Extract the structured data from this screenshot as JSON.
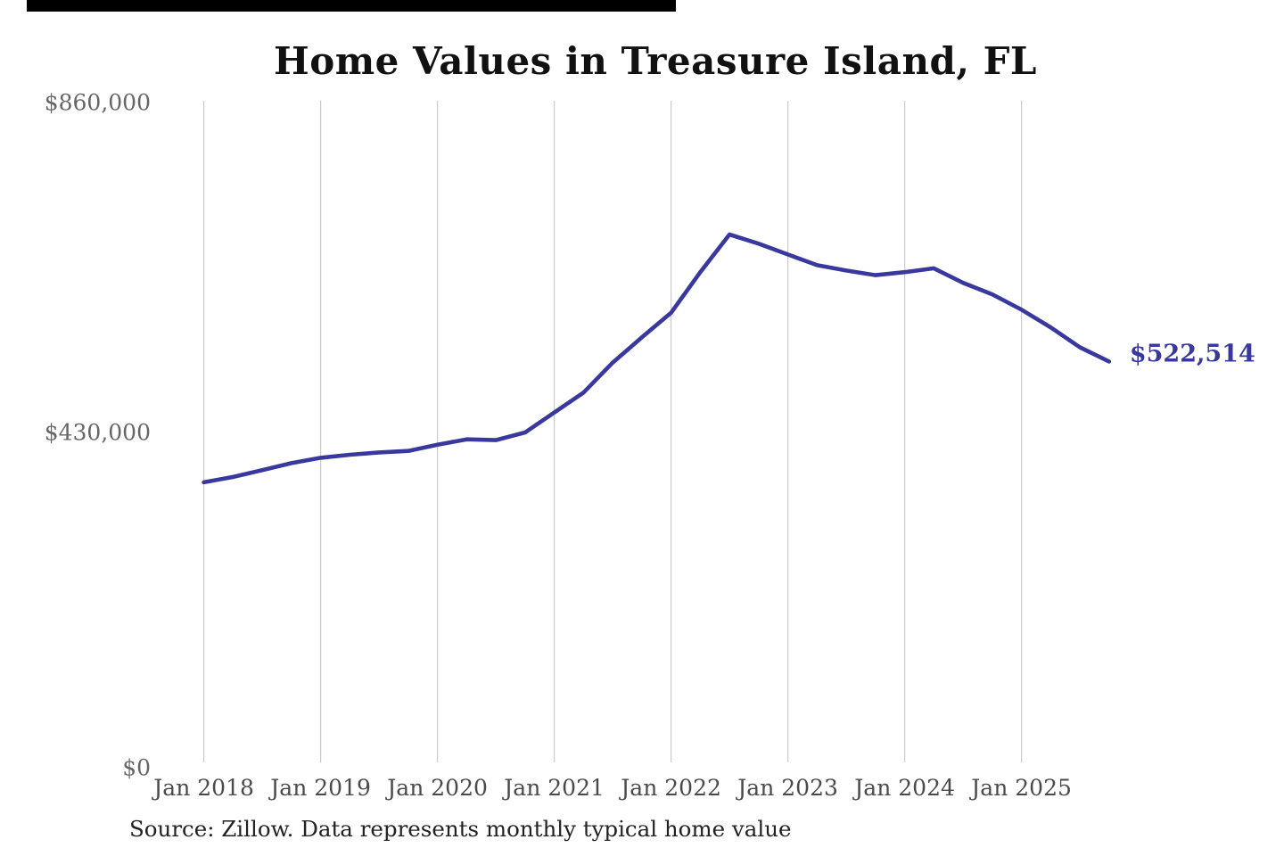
{
  "decor": {
    "top_bar_color": "#000000"
  },
  "colors": {
    "accent": "#38389e",
    "gridline": "#cbcbcb",
    "title_text": "#111111",
    "y_label_text": "#666666",
    "x_label_text": "#4a4a4a",
    "source_text": "#222222",
    "background": "#ffffff"
  },
  "header": {
    "title": "Home Values in Treasure Island, FL"
  },
  "footer": {
    "source_note": "Source: Zillow. Data represents monthly typical home value"
  },
  "chart_data": {
    "type": "line",
    "title": "Home Values in Treasure Island, FL",
    "xlabel": "",
    "ylabel": "",
    "ylim": [
      0,
      860000
    ],
    "xlim": [
      2018.0,
      2026.0
    ],
    "grid": "vertical-only",
    "legend": "none",
    "y_ticks": [
      {
        "value": 0,
        "label": "$0"
      },
      {
        "value": 430000,
        "label": "$430,000"
      },
      {
        "value": 860000,
        "label": "$860,000"
      }
    ],
    "x_ticks": [
      {
        "value": 2018,
        "label": "Jan 2018"
      },
      {
        "value": 2019,
        "label": "Jan 2019"
      },
      {
        "value": 2020,
        "label": "Jan 2020"
      },
      {
        "value": 2021,
        "label": "Jan 2021"
      },
      {
        "value": 2022,
        "label": "Jan 2022"
      },
      {
        "value": 2023,
        "label": "Jan 2023"
      },
      {
        "value": 2024,
        "label": "Jan 2024"
      },
      {
        "value": 2025,
        "label": "Jan 2025"
      }
    ],
    "series": [
      {
        "name": "Typical home value",
        "points": [
          {
            "x": 2018.0,
            "y": 365000
          },
          {
            "x": 2018.25,
            "y": 372000
          },
          {
            "x": 2018.5,
            "y": 381000
          },
          {
            "x": 2018.75,
            "y": 390000
          },
          {
            "x": 2019.0,
            "y": 397000
          },
          {
            "x": 2019.25,
            "y": 401000
          },
          {
            "x": 2019.5,
            "y": 404000
          },
          {
            "x": 2019.75,
            "y": 406000
          },
          {
            "x": 2020.0,
            "y": 414000
          },
          {
            "x": 2020.25,
            "y": 421000
          },
          {
            "x": 2020.5,
            "y": 420000
          },
          {
            "x": 2020.75,
            "y": 430000
          },
          {
            "x": 2021.0,
            "y": 456000
          },
          {
            "x": 2021.25,
            "y": 482000
          },
          {
            "x": 2021.5,
            "y": 521000
          },
          {
            "x": 2021.75,
            "y": 554000
          },
          {
            "x": 2022.0,
            "y": 586000
          },
          {
            "x": 2022.25,
            "y": 639000
          },
          {
            "x": 2022.5,
            "y": 688000
          },
          {
            "x": 2022.75,
            "y": 676000
          },
          {
            "x": 2023.0,
            "y": 662000
          },
          {
            "x": 2023.25,
            "y": 648000
          },
          {
            "x": 2023.5,
            "y": 641000
          },
          {
            "x": 2023.75,
            "y": 635000
          },
          {
            "x": 2024.0,
            "y": 639000
          },
          {
            "x": 2024.25,
            "y": 644000
          },
          {
            "x": 2024.5,
            "y": 625000
          },
          {
            "x": 2024.75,
            "y": 610000
          },
          {
            "x": 2025.0,
            "y": 590000
          },
          {
            "x": 2025.25,
            "y": 567000
          },
          {
            "x": 2025.5,
            "y": 541000
          },
          {
            "x": 2025.75,
            "y": 522514
          }
        ]
      }
    ],
    "end_annotation": {
      "label": "$522,514",
      "value": 522514
    }
  }
}
